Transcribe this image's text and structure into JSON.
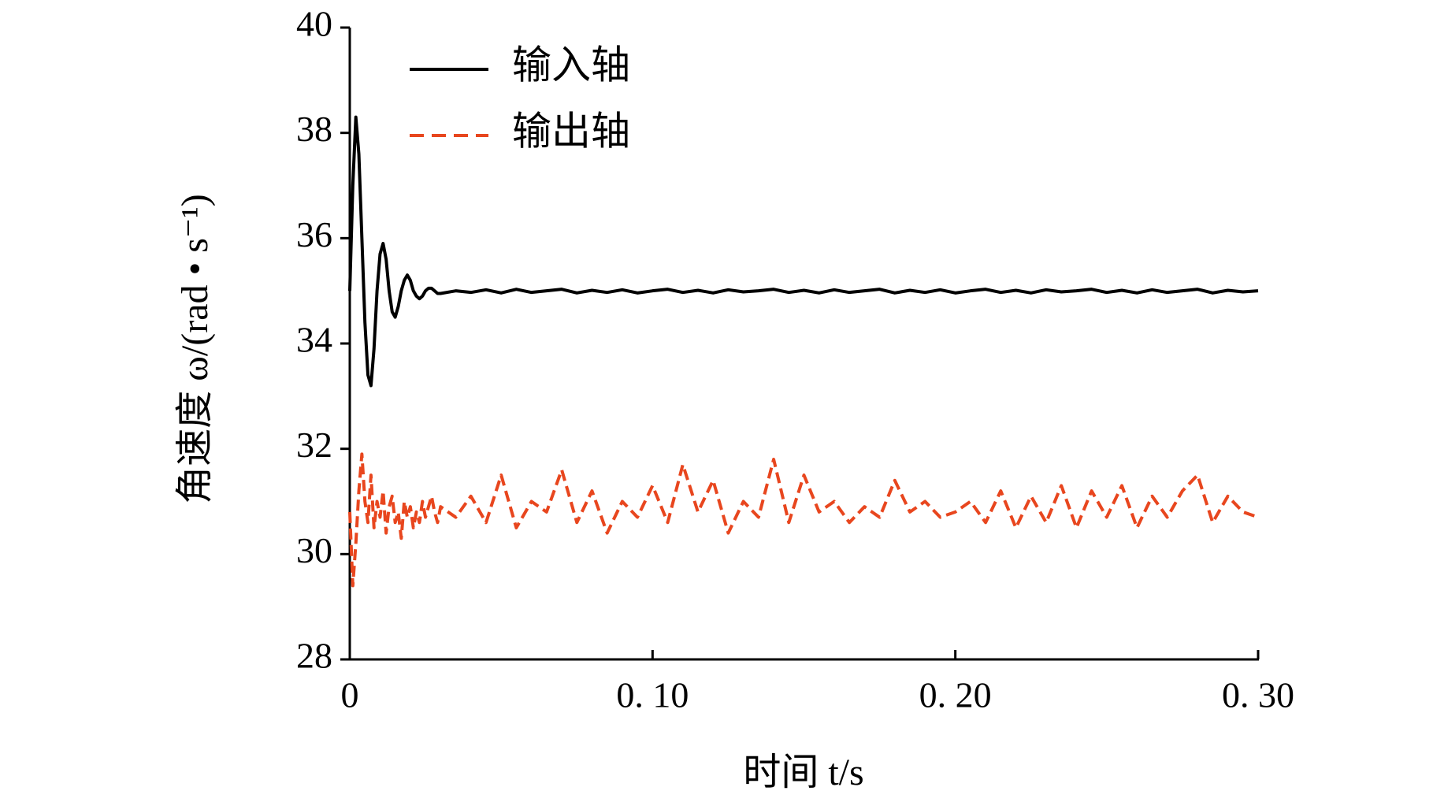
{
  "chart_data": {
    "type": "line",
    "xlabel": "时间 t/s",
    "ylabel": "角速度 ω/(rad • s⁻¹)",
    "xlim": [
      0,
      0.3
    ],
    "ylim": [
      28,
      40
    ],
    "xticks": [
      0,
      {
        "value": 0.1,
        "label": "0. 10"
      },
      {
        "value": 0.2,
        "label": "0. 20"
      },
      {
        "value": 0.3,
        "label": "0. 30"
      }
    ],
    "yticks": [
      28,
      30,
      32,
      34,
      36,
      38,
      40
    ],
    "legend": "upper left",
    "x": [
      0,
      0.001,
      0.002,
      0.003,
      0.004,
      0.005,
      0.006,
      0.007,
      0.008,
      0.009,
      0.01,
      0.011,
      0.012,
      0.013,
      0.014,
      0.015,
      0.016,
      0.017,
      0.018,
      0.019,
      0.02,
      0.021,
      0.022,
      0.023,
      0.024,
      0.025,
      0.026,
      0.027,
      0.028,
      0.029,
      0.03,
      0.035,
      0.04,
      0.045,
      0.05,
      0.055,
      0.06,
      0.065,
      0.07,
      0.075,
      0.08,
      0.085,
      0.09,
      0.095,
      0.1,
      0.105,
      0.11,
      0.115,
      0.12,
      0.125,
      0.13,
      0.135,
      0.14,
      0.145,
      0.15,
      0.155,
      0.16,
      0.165,
      0.17,
      0.175,
      0.18,
      0.185,
      0.19,
      0.195,
      0.2,
      0.205,
      0.21,
      0.215,
      0.22,
      0.225,
      0.23,
      0.235,
      0.24,
      0.245,
      0.25,
      0.255,
      0.26,
      0.265,
      0.27,
      0.275,
      0.28,
      0.285,
      0.29,
      0.295,
      0.3
    ],
    "series": [
      {
        "name": "输入轴",
        "color": "#000000",
        "dash": false,
        "values": [
          35.0,
          37.0,
          38.3,
          37.6,
          36.0,
          34.4,
          33.4,
          33.2,
          33.9,
          35.0,
          35.7,
          35.9,
          35.6,
          35.0,
          34.6,
          34.5,
          34.7,
          35.0,
          35.2,
          35.3,
          35.2,
          35.0,
          34.9,
          34.85,
          34.9,
          35.0,
          35.05,
          35.05,
          35.0,
          34.95,
          34.95,
          35.0,
          34.97,
          35.02,
          34.96,
          35.03,
          34.97,
          35.0,
          35.03,
          34.96,
          35.01,
          34.97,
          35.02,
          34.96,
          35.0,
          35.03,
          34.97,
          35.01,
          34.96,
          35.02,
          34.98,
          35.0,
          35.03,
          34.97,
          35.01,
          34.96,
          35.02,
          34.97,
          35.0,
          35.03,
          34.96,
          35.01,
          34.97,
          35.02,
          34.96,
          35.0,
          35.03,
          34.97,
          35.01,
          34.96,
          35.02,
          34.98,
          35.0,
          35.03,
          34.97,
          35.01,
          34.96,
          35.02,
          34.97,
          35.0,
          35.03,
          34.96,
          35.01,
          34.98,
          35.0
        ]
      },
      {
        "name": "输出轴",
        "color": "#e8461e",
        "dash": true,
        "values": [
          30.8,
          29.4,
          30.2,
          31.2,
          31.9,
          31.0,
          30.6,
          31.5,
          30.5,
          31.0,
          30.7,
          31.2,
          30.4,
          30.9,
          31.1,
          30.6,
          30.8,
          30.3,
          31.0,
          30.7,
          30.9,
          30.5,
          30.8,
          30.6,
          31.0,
          30.7,
          30.9,
          31.1,
          30.8,
          30.6,
          30.9,
          30.7,
          31.1,
          30.6,
          31.5,
          30.5,
          31.0,
          30.8,
          31.6,
          30.6,
          31.2,
          30.4,
          31.0,
          30.7,
          31.3,
          30.6,
          31.7,
          30.8,
          31.4,
          30.4,
          31.0,
          30.7,
          31.8,
          30.6,
          31.5,
          30.8,
          31.0,
          30.6,
          30.9,
          30.7,
          31.4,
          30.8,
          31.0,
          30.7,
          30.8,
          31.0,
          30.6,
          31.2,
          30.5,
          31.1,
          30.6,
          31.3,
          30.5,
          31.2,
          30.7,
          31.3,
          30.5,
          31.1,
          30.7,
          31.2,
          31.5,
          30.6,
          31.1,
          30.8,
          30.7
        ]
      }
    ]
  }
}
